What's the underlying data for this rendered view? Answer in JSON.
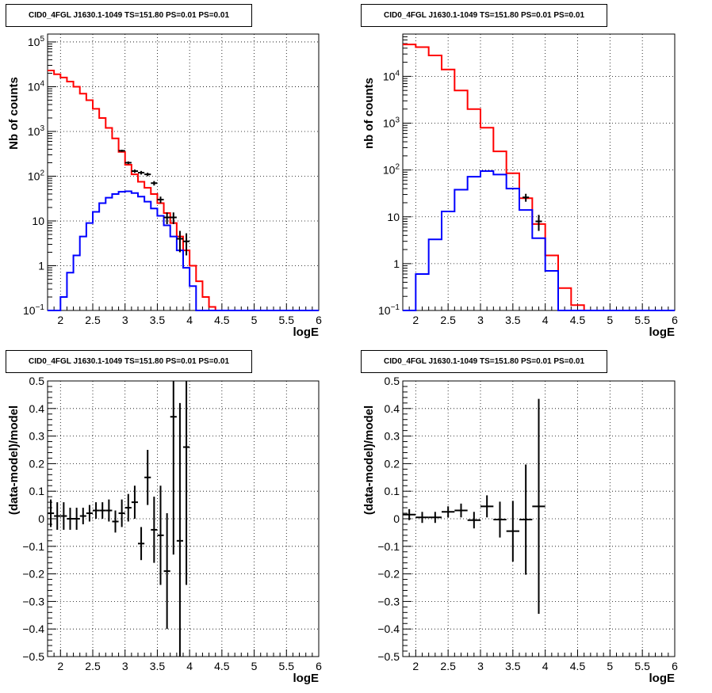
{
  "chart_data": [
    {
      "type": "histogram",
      "title": "CID0_4FGL J1630.1-1049 TS=151.80 PS=0.01 PS=0.01",
      "xlabel": "logE",
      "ylabel": "Nb of counts",
      "xlim": [
        1.8,
        6.0
      ],
      "ylim": [
        0.1,
        150000
      ],
      "yscale": "log",
      "grid": true,
      "xticks": [
        "2",
        "2.5",
        "3",
        "3.5",
        "4",
        "4.5",
        "5",
        "5.5",
        "6"
      ],
      "yticks": [
        "10^-1",
        "1",
        "10",
        "10^2",
        "10^3",
        "10^4",
        "10^5"
      ],
      "series": [
        {
          "kind": "step",
          "color": "#ff0000",
          "edges": [
            1.8,
            1.9,
            2.0,
            2.1,
            2.2,
            2.3,
            2.4,
            2.5,
            2.6,
            2.7,
            2.8,
            2.9,
            3.0,
            3.1,
            3.2,
            3.3,
            3.4,
            3.5,
            3.6,
            3.7,
            3.8,
            3.9,
            4.0,
            4.1,
            4.2,
            4.3,
            4.4,
            4.5,
            4.6,
            4.7,
            4.8,
            4.9,
            5.0,
            5.1,
            5.2,
            5.3,
            5.4,
            5.5,
            5.6,
            5.7,
            5.8,
            5.9,
            6.0
          ],
          "values": [
            23000,
            19000,
            16000,
            13000,
            10000,
            7000,
            5000,
            3200,
            2000,
            1200,
            700,
            350,
            180,
            110,
            75,
            55,
            40,
            25,
            15,
            9,
            4.5,
            2.2,
            1.0,
            0.45,
            0.2,
            0.12,
            0.1,
            0.1,
            0.1,
            0.1,
            0.1,
            0.1,
            0.1,
            0.1,
            0.1,
            0.1,
            0.1,
            0.1,
            0.1,
            0.1,
            0.1,
            0.1
          ]
        },
        {
          "kind": "step",
          "color": "#0000ff",
          "edges": [
            1.8,
            1.9,
            2.0,
            2.1,
            2.2,
            2.3,
            2.4,
            2.5,
            2.6,
            2.7,
            2.8,
            2.9,
            3.0,
            3.1,
            3.2,
            3.3,
            3.4,
            3.5,
            3.6,
            3.7,
            3.8,
            3.9,
            4.0,
            4.1,
            4.2,
            4.3,
            4.4,
            4.5,
            4.6,
            4.7,
            4.8,
            4.9,
            5.0,
            5.1,
            5.2,
            5.3,
            5.4,
            5.5,
            5.6,
            5.7,
            5.8,
            5.9,
            6.0
          ],
          "values": [
            0.1,
            0.1,
            0.2,
            0.7,
            1.7,
            4.5,
            9,
            16,
            25,
            33,
            40,
            45,
            46,
            42,
            35,
            27,
            19,
            13,
            8,
            4.5,
            2.2,
            0.9,
            0.35,
            0.1,
            0.1,
            0.1,
            0.1,
            0.1,
            0.1,
            0.1,
            0.1,
            0.1,
            0.1,
            0.1,
            0.1,
            0.1,
            0.1,
            0.1,
            0.1,
            0.1,
            0.1,
            0.1
          ]
        },
        {
          "kind": "points",
          "color": "#000000",
          "x": [
            2.95,
            3.05,
            3.15,
            3.25,
            3.35,
            3.45,
            3.55,
            3.65,
            3.75,
            3.85,
            3.95
          ],
          "y": [
            370,
            200,
            130,
            120,
            110,
            70,
            30,
            12,
            12,
            4,
            3.5
          ],
          "yerr_low": [
            20,
            14,
            11,
            11,
            10,
            8,
            5,
            3.5,
            3.5,
            2,
            1.8
          ],
          "yerr_high": [
            20,
            14,
            11,
            11,
            10,
            8,
            5,
            3.5,
            3.5,
            2,
            1.8
          ]
        }
      ]
    },
    {
      "type": "histogram",
      "title": "CID0_4FGL J1630.1-1049 TS=151.80 PS=0.01 PS=0.01",
      "xlabel": "logE",
      "ylabel": "nb of counts",
      "xlim": [
        1.8,
        6.0
      ],
      "ylim": [
        0.1,
        80000
      ],
      "yscale": "log",
      "grid": true,
      "xticks": [
        "2",
        "2.5",
        "3",
        "3.5",
        "4",
        "4.5",
        "5",
        "5.5",
        "6"
      ],
      "yticks": [
        "10^-1",
        "1",
        "10",
        "10^2",
        "10^3",
        "10^4"
      ],
      "series": [
        {
          "kind": "step",
          "color": "#ff0000",
          "edges": [
            1.8,
            2.0,
            2.2,
            2.4,
            2.6,
            2.8,
            3.0,
            3.2,
            3.4,
            3.6,
            3.8,
            4.0,
            4.2,
            4.4,
            4.6,
            4.8,
            5.0,
            5.2,
            5.4,
            5.6,
            5.8,
            6.0
          ],
          "values": [
            48000,
            42000,
            28000,
            14000,
            5000,
            2000,
            800,
            250,
            85,
            25,
            7,
            1.5,
            0.3,
            0.13,
            0.1,
            0.1,
            0.1,
            0.1,
            0.1,
            0.1,
            0.1
          ]
        },
        {
          "kind": "step",
          "color": "#0000ff",
          "edges": [
            1.8,
            2.0,
            2.2,
            2.4,
            2.6,
            2.8,
            3.0,
            3.2,
            3.4,
            3.6,
            3.8,
            4.0,
            4.2,
            4.4,
            4.6,
            4.8,
            5.0,
            5.2,
            5.4,
            5.6,
            5.8,
            6.0
          ],
          "values": [
            0.1,
            0.6,
            3.3,
            13,
            38,
            72,
            95,
            80,
            40,
            14,
            3.5,
            0.7,
            0.1,
            0.1,
            0.1,
            0.1,
            0.1,
            0.1,
            0.1,
            0.1,
            0.1
          ]
        },
        {
          "kind": "points",
          "color": "#000000",
          "x": [
            3.7,
            3.9
          ],
          "y": [
            26,
            8
          ],
          "yerr_low": [
            5,
            3
          ],
          "yerr_high": [
            5,
            3
          ]
        }
      ]
    },
    {
      "type": "errorbar",
      "title": "CID0_4FGL J1630.1-1049 TS=151.80 PS=0.01 PS=0.01",
      "xlabel": "logE",
      "ylabel": "(data-model)/model",
      "xlim": [
        1.8,
        6.0
      ],
      "ylim": [
        -0.5,
        0.5
      ],
      "grid": true,
      "xticks": [
        "2",
        "2.5",
        "3",
        "3.5",
        "4",
        "4.5",
        "5",
        "5.5",
        "6"
      ],
      "yticks": [
        "−0.5",
        "−0.4",
        "−0.3",
        "−0.2",
        "−0.1",
        "0",
        "0.1",
        "0.2",
        "0.3",
        "0.4",
        "0.5"
      ],
      "series": [
        {
          "kind": "points",
          "color": "#000000",
          "x": [
            1.85,
            1.95,
            2.05,
            2.15,
            2.25,
            2.35,
            2.45,
            2.55,
            2.65,
            2.75,
            2.85,
            2.95,
            3.05,
            3.15,
            3.25,
            3.35,
            3.45,
            3.55,
            3.65,
            3.75,
            3.85,
            3.95
          ],
          "y": [
            0.02,
            0.01,
            0.01,
            0.0,
            0.0,
            0.01,
            0.02,
            0.03,
            0.03,
            0.03,
            -0.01,
            0.02,
            0.04,
            0.06,
            -0.09,
            0.15,
            -0.04,
            -0.06,
            -0.19,
            0.37,
            -0.08,
            0.26
          ],
          "yerr": [
            0.05,
            0.05,
            0.05,
            0.04,
            0.04,
            0.03,
            0.03,
            0.03,
            0.03,
            0.04,
            0.04,
            0.05,
            0.05,
            0.06,
            0.06,
            0.1,
            0.12,
            0.18,
            0.21,
            0.5,
            0.5,
            0.5
          ]
        }
      ]
    },
    {
      "type": "errorbar",
      "title": "CID0_4FGL J1630.1-1049 TS=151.80 PS=0.01 PS=0.01",
      "xlabel": "logE",
      "ylabel": "(data-model)/model",
      "xlim": [
        1.8,
        6.0
      ],
      "ylim": [
        -0.5,
        0.5
      ],
      "grid": true,
      "xticks": [
        "2",
        "2.5",
        "3",
        "3.5",
        "4",
        "4.5",
        "5",
        "5.5",
        "6"
      ],
      "yticks": [
        "−0.5",
        "−0.4",
        "−0.3",
        "−0.2",
        "−0.1",
        "0",
        "0.1",
        "0.2",
        "0.3",
        "0.4",
        "0.5"
      ],
      "series": [
        {
          "kind": "points",
          "color": "#000000",
          "x": [
            1.9,
            2.1,
            2.3,
            2.5,
            2.7,
            2.9,
            3.1,
            3.3,
            3.5,
            3.7,
            3.9
          ],
          "y": [
            0.015,
            0.005,
            0.005,
            0.025,
            0.03,
            -0.005,
            0.045,
            -0.003,
            -0.045,
            -0.003,
            0.045
          ],
          "yerr": [
            0.02,
            0.02,
            0.02,
            0.02,
            0.025,
            0.03,
            0.04,
            0.065,
            0.11,
            0.2,
            0.39
          ]
        }
      ]
    }
  ]
}
